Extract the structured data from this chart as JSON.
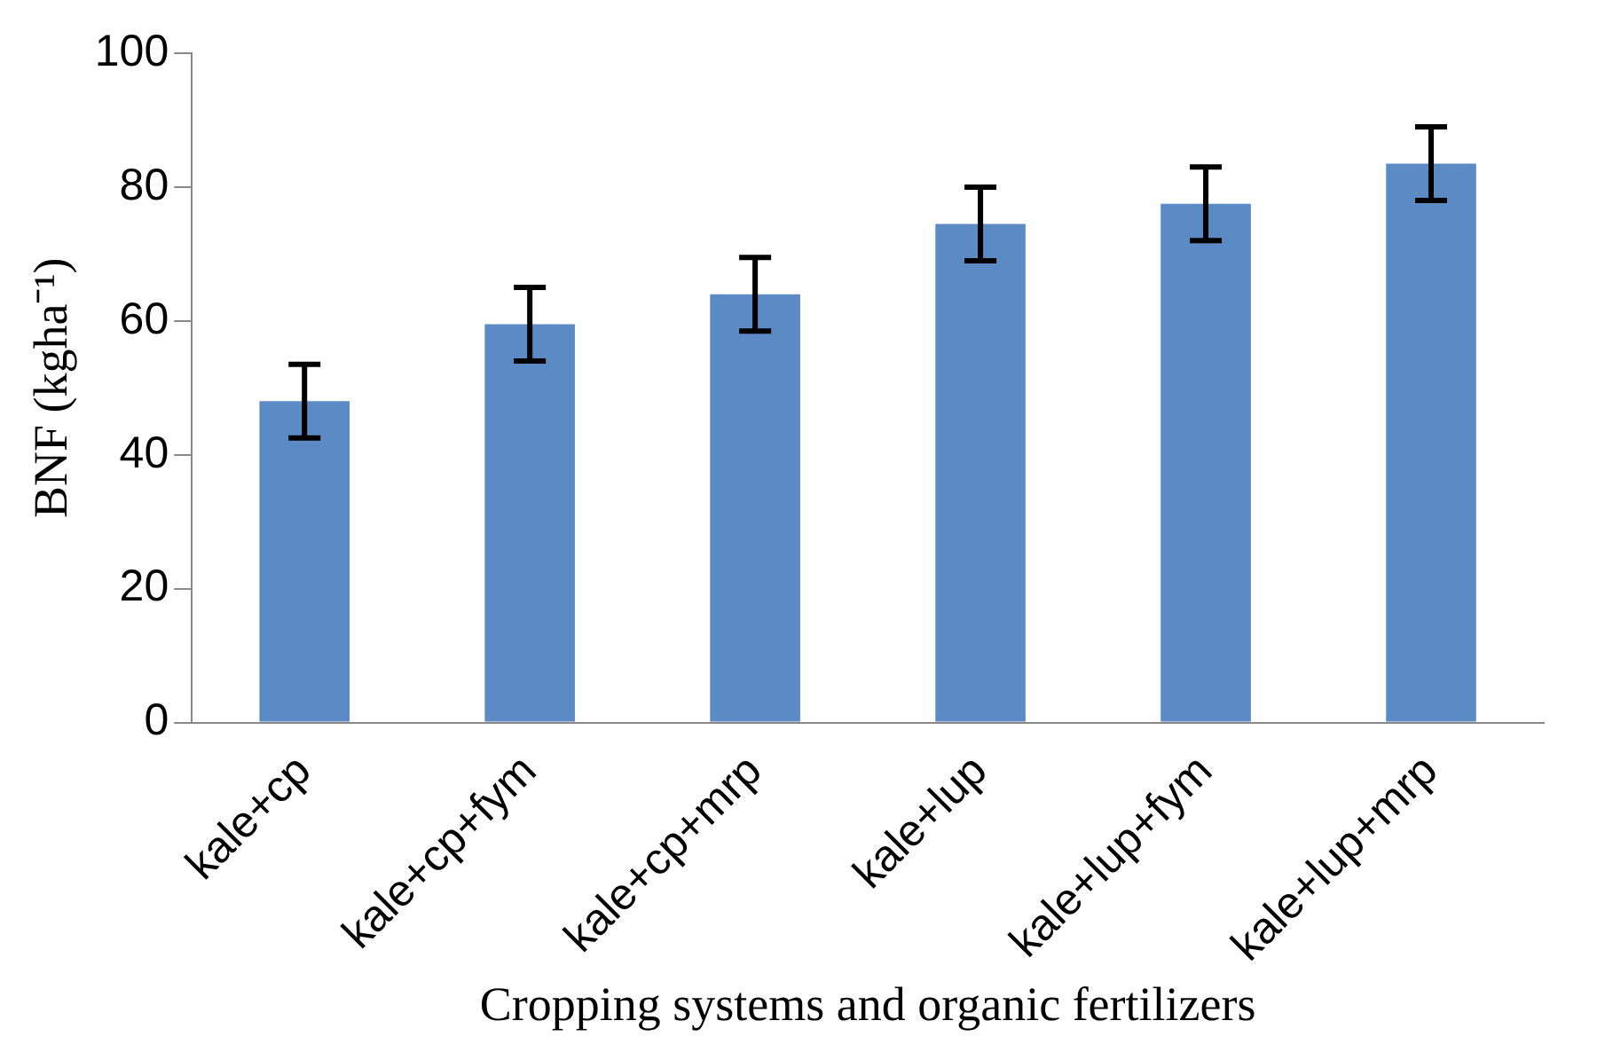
{
  "chart_data": {
    "type": "bar",
    "xlabel": "Cropping systems and organic fertilizers",
    "ylabel": "BNF (kgha⁻¹)",
    "categories": [
      "kale+cp",
      "kale+cp+fym",
      "kale+cp+mrp",
      "kale+lup",
      "kale+lup+fym",
      "kale+lup+mrp"
    ],
    "values": [
      48,
      59.5,
      64,
      74.5,
      77.5,
      83.5
    ],
    "errors": [
      5.5,
      5.5,
      5.5,
      5.5,
      5.5,
      5.5
    ],
    "color": "#5b8ac4",
    "ylim": [
      0,
      100
    ],
    "yticks": [
      0,
      20,
      40,
      60,
      80,
      100
    ],
    "grid": false,
    "legend": false
  }
}
